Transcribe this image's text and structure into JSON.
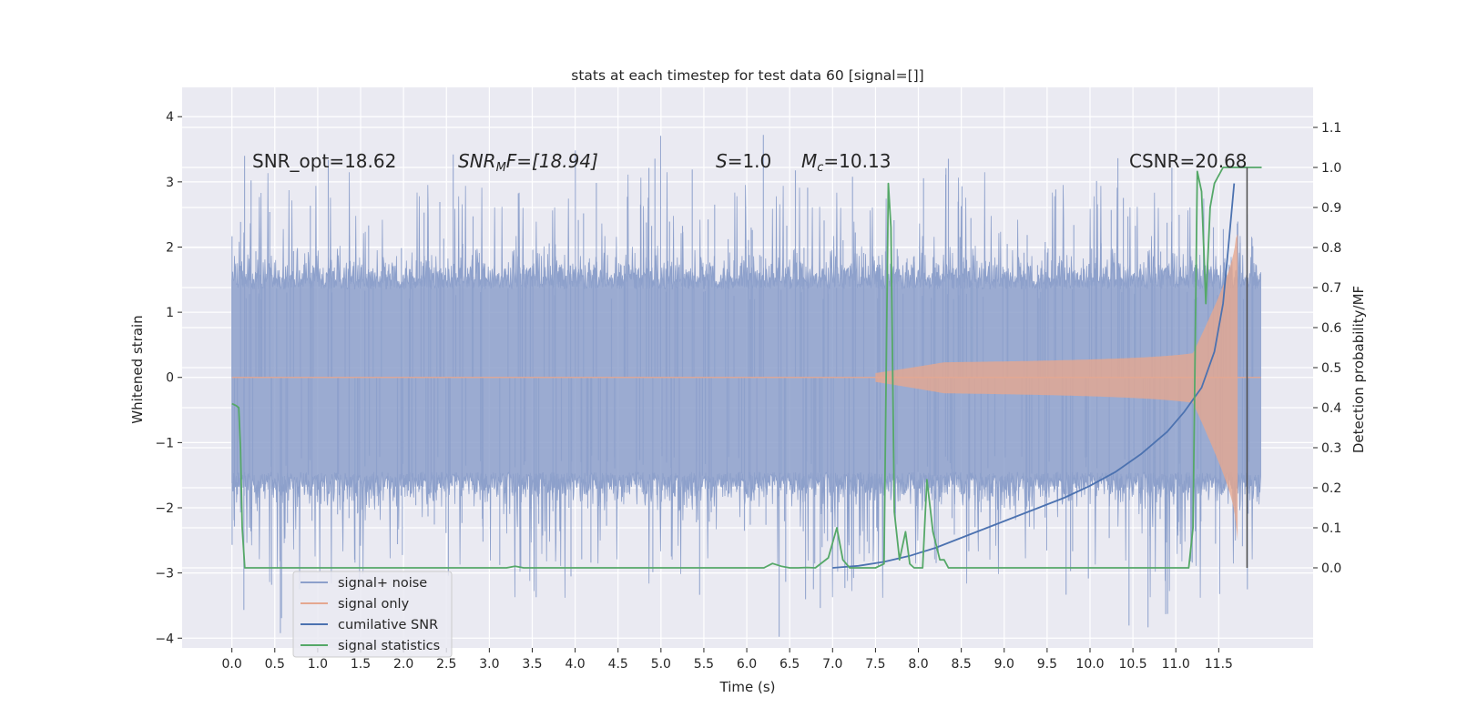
{
  "chart_data": {
    "type": "line",
    "title": "stats at each timestep for test data 60 [signal=[]]",
    "xlabel": "Time (s)",
    "ylabel": "Whitened strain",
    "ylabel_right": "Detection probability/MF",
    "xlim": [
      -0.58,
      12.6
    ],
    "ylim": [
      -4.15,
      4.45
    ],
    "ylim_right": [
      -0.2,
      1.2
    ],
    "xticks": [
      0.0,
      0.5,
      1.0,
      1.5,
      2.0,
      2.5,
      3.0,
      3.5,
      4.0,
      4.5,
      5.0,
      5.5,
      6.0,
      6.5,
      7.0,
      7.5,
      8.0,
      8.5,
      9.0,
      9.5,
      10.0,
      10.5,
      11.0,
      11.5
    ],
    "xtick_labels": [
      "0.0",
      "0.5",
      "1.0",
      "1.5",
      "2.0",
      "2.5",
      "3.0",
      "3.5",
      "4.0",
      "4.5",
      "5.0",
      "5.5",
      "6.0",
      "6.5",
      "7.0",
      "7.5",
      "8.0",
      "8.5",
      "9.0",
      "9.5",
      "10.0",
      "10.5",
      "11.0",
      "11.5"
    ],
    "yticks": [
      -4,
      -3,
      -2,
      -1,
      0,
      1,
      2,
      3,
      4
    ],
    "ytick_labels": [
      "−4",
      "−3",
      "−2",
      "−1",
      "0",
      "1",
      "2",
      "3",
      "4"
    ],
    "yticks_right": [
      0.0,
      0.1,
      0.2,
      0.3,
      0.4,
      0.5,
      0.6,
      0.7,
      0.8,
      0.9,
      1.0,
      1.1
    ],
    "ytick_labels_right": [
      "0.0",
      "0.1",
      "0.2",
      "0.3",
      "0.4",
      "0.5",
      "0.6",
      "0.7",
      "0.8",
      "0.9",
      "1.0",
      "1.1"
    ],
    "grid": true,
    "legend_position": "bottom-left",
    "annotations": {
      "snr_opt": "SNR_opt=18.62",
      "snr_mf_main": "SNR",
      "snr_mf_sub": "M",
      "snr_mf_rest": "F=[18.94]",
      "s_main": "S",
      "s_rest": "=1.0",
      "mc_main": "M",
      "mc_sub": "c",
      "mc_rest": "=10.13",
      "csnr": "CSNR=20.68"
    },
    "marker_time": 11.83,
    "series": [
      {
        "name": "signal+ noise",
        "color": "#8da0cb",
        "axis": "left",
        "t_end": 11.99,
        "envelope_upper": 1.35,
        "envelope_lower": -1.45
      },
      {
        "name": "signal only",
        "color": "#e5a790",
        "axis": "left",
        "chirp_start": 7.5,
        "merger_time": 11.72,
        "peak_amplitude": 2.2,
        "peak_amplitude_neg": -2.5
      },
      {
        "name": "cumilative SNR",
        "color": "#4c72b0",
        "axis": "right",
        "x": [
          7.0,
          7.3,
          7.6,
          7.9,
          8.2,
          8.5,
          8.8,
          9.1,
          9.4,
          9.7,
          10.0,
          10.3,
          10.6,
          10.9,
          11.1,
          11.3,
          11.45,
          11.55,
          11.62,
          11.68
        ],
        "y": [
          0.0,
          0.005,
          0.015,
          0.03,
          0.05,
          0.075,
          0.1,
          0.125,
          0.15,
          0.175,
          0.205,
          0.24,
          0.285,
          0.34,
          0.39,
          0.45,
          0.54,
          0.66,
          0.82,
          0.96
        ]
      },
      {
        "name": "signal statistics",
        "color": "#55a868",
        "axis": "right",
        "x": [
          0.0,
          0.05,
          0.08,
          0.1,
          0.12,
          0.15,
          0.2,
          3.2,
          3.3,
          3.4,
          6.2,
          6.3,
          6.4,
          6.5,
          6.6,
          6.7,
          6.8,
          6.95,
          7.05,
          7.12,
          7.2,
          7.3,
          7.5,
          7.6,
          7.65,
          7.68,
          7.72,
          7.78,
          7.85,
          7.9,
          7.95,
          8.05,
          8.1,
          8.17,
          8.25,
          8.3,
          8.35,
          8.45,
          8.55,
          8.7,
          9.5,
          10.0,
          10.5,
          11.0,
          11.15,
          11.2,
          11.25,
          11.3,
          11.35,
          11.4,
          11.45,
          11.55,
          11.65,
          11.75,
          11.9,
          12.0
        ],
        "y": [
          0.41,
          0.405,
          0.4,
          0.3,
          0.1,
          0.0,
          0.0,
          0.0,
          0.004,
          0.0,
          0.0,
          0.011,
          0.004,
          0.0,
          0.0,
          0.001,
          0.0,
          0.025,
          0.1,
          0.02,
          0.0,
          0.0,
          0.0,
          0.01,
          0.96,
          0.85,
          0.14,
          0.02,
          0.09,
          0.01,
          0.0,
          0.0,
          0.22,
          0.09,
          0.02,
          0.02,
          0.0,
          0.0,
          0.0,
          0.0,
          0.0,
          0.0,
          0.0,
          0.0,
          0.0,
          0.1,
          0.99,
          0.94,
          0.66,
          0.9,
          0.96,
          1.0,
          1.0,
          1.0,
          1.0,
          1.0
        ]
      }
    ]
  }
}
